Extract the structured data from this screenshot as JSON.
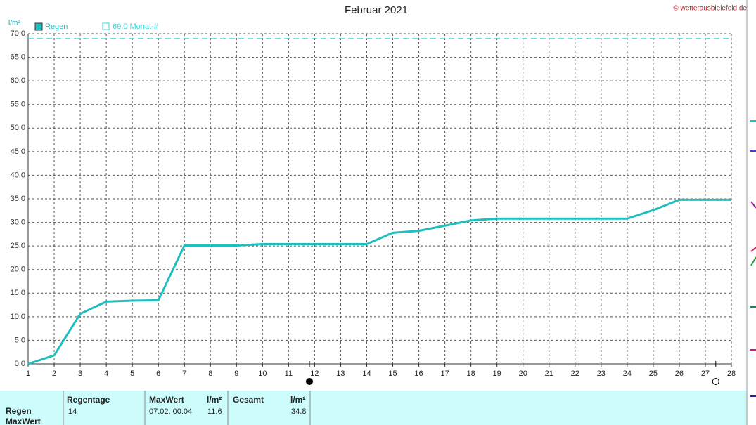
{
  "chart_data": {
    "type": "line",
    "title": "Februar 2021",
    "source": "© wetterausbielefeld.de",
    "y_label": "l/m²",
    "x": [
      1,
      2,
      3,
      4,
      5,
      6,
      7,
      8,
      9,
      10,
      11,
      12,
      13,
      14,
      15,
      16,
      17,
      18,
      19,
      20,
      21,
      22,
      23,
      24,
      25,
      26,
      27,
      28
    ],
    "series": [
      {
        "name": "Regen",
        "color": "#1fbfbf",
        "values": [
          0,
          1.8,
          10.6,
          13.2,
          13.4,
          13.5,
          25.1,
          25.1,
          25.1,
          25.4,
          25.4,
          25.4,
          25.4,
          25.4,
          27.8,
          28.2,
          29.3,
          30.4,
          30.8,
          30.8,
          30.8,
          30.8,
          30.8,
          30.8,
          32.6,
          34.8,
          34.8,
          34.8
        ]
      }
    ],
    "reference": {
      "value": 69,
      "label": "69.0 Monat-#",
      "color": "#3fd6d6"
    },
    "moon_phases": [
      {
        "x": 11.8,
        "filled": true
      },
      {
        "x": 27.4,
        "filled": false
      }
    ],
    "xlim": [
      1,
      28
    ],
    "xticks": [
      1,
      2,
      3,
      4,
      5,
      6,
      7,
      8,
      9,
      10,
      11,
      12,
      13,
      14,
      15,
      16,
      17,
      18,
      19,
      20,
      21,
      22,
      23,
      24,
      25,
      26,
      27,
      28
    ],
    "ylim": [
      0,
      70
    ],
    "yticks": [
      {
        "value": 0,
        "label": "0.0"
      },
      {
        "value": 5,
        "label": "5.0"
      },
      {
        "value": 10,
        "label": "10.0"
      },
      {
        "value": 15,
        "label": "15.0"
      },
      {
        "value": 20,
        "label": "20.0"
      },
      {
        "value": 25,
        "label": "25.0"
      },
      {
        "value": 30,
        "label": "30.0"
      },
      {
        "value": 35,
        "label": "35.0"
      },
      {
        "value": 40,
        "label": "40.0"
      },
      {
        "value": 45,
        "label": "45.0"
      },
      {
        "value": 50,
        "label": "50.0"
      },
      {
        "value": 55,
        "label": "55.0"
      },
      {
        "value": 60,
        "label": "60.0"
      },
      {
        "value": 65,
        "label": "65.0"
      },
      {
        "value": 70,
        "label": "70.0"
      }
    ],
    "grid": true
  },
  "table": {
    "columns": [
      "Regentage",
      "MaxWert",
      "l/m²",
      "Gesamt",
      "l/m²"
    ],
    "row_labels": [
      "Regen",
      "MaxWert"
    ],
    "rows": [
      [
        "14",
        "07.02. 00:04",
        "11.6",
        "",
        "34.8"
      ]
    ]
  }
}
